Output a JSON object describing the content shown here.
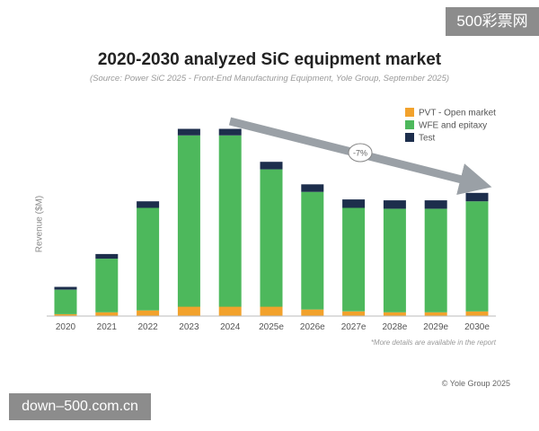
{
  "watermarks": {
    "top_right": "500彩票网",
    "bottom_left": "down–500.com.cn"
  },
  "chart_data": {
    "type": "bar",
    "stacked": true,
    "title": "2020-2030 analyzed SiC equipment market",
    "subtitle": "(Source: Power SiC 2025 - Front-End Manufacturing Equipment, Yole Group, September 2025)",
    "ylabel": "Revenue ($M)",
    "xlabel": "",
    "ylim": [
      0,
      210
    ],
    "grid": false,
    "legend_position": "top-right",
    "categories": [
      "2020",
      "2021",
      "2022",
      "2023",
      "2024",
      "2025e",
      "2026e",
      "2027e",
      "2028e",
      "2029e",
      "2030e"
    ],
    "series": [
      {
        "name": "PVT - Open market",
        "color": "#f2a22c",
        "values": [
          2,
          4,
          6,
          10,
          10,
          10,
          7,
          5,
          4,
          4,
          5
        ]
      },
      {
        "name": "WFE and epitaxy",
        "color": "#4db85c",
        "values": [
          26,
          57,
          109,
          182,
          182,
          146,
          125,
          110,
          110,
          110,
          117
        ]
      },
      {
        "name": "Test",
        "color": "#1d2e4c",
        "values": [
          3,
          5,
          7,
          7,
          7,
          8,
          8,
          9,
          9,
          9,
          9
        ]
      }
    ],
    "annotation": {
      "text": "-7%",
      "trend": "decline"
    },
    "footnote": "*More details are available in the report",
    "copyright": "© Yole Group 2025"
  }
}
